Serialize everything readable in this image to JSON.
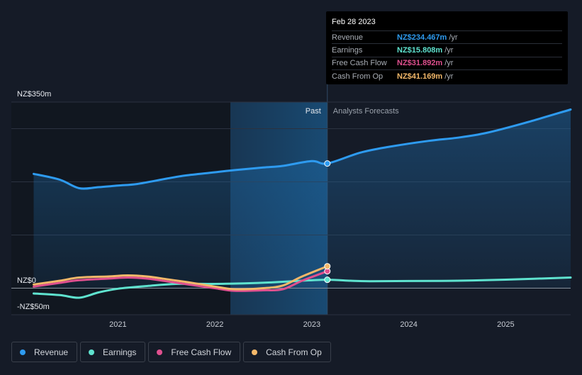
{
  "tooltip": {
    "date": "Feb 28 2023",
    "rows": [
      {
        "label": "Revenue",
        "value": "NZ$234.467m",
        "unit": "/yr",
        "color": "#2e9bf0"
      },
      {
        "label": "Earnings",
        "value": "NZ$15.808m",
        "unit": "/yr",
        "color": "#5fe3cf"
      },
      {
        "label": "Free Cash Flow",
        "value": "NZ$31.892m",
        "unit": "/yr",
        "color": "#e0508f"
      },
      {
        "label": "Cash From Op",
        "value": "NZ$41.169m",
        "unit": "/yr",
        "color": "#f3b86a"
      }
    ]
  },
  "legend": [
    {
      "label": "Revenue",
      "color": "#2e9bf0"
    },
    {
      "label": "Earnings",
      "color": "#5fe3cf"
    },
    {
      "label": "Free Cash Flow",
      "color": "#e0508f"
    },
    {
      "label": "Cash From Op",
      "color": "#f3b86a"
    }
  ],
  "chart_data": {
    "type": "line",
    "section_labels": {
      "past": "Past",
      "forecast": "Analysts Forecasts"
    },
    "y_tick_labels": [
      {
        "value": 350,
        "label": "NZ$350m"
      },
      {
        "value": 0,
        "label": "NZ$0"
      },
      {
        "value": -50,
        "label": "-NZ$50m"
      }
    ],
    "ylim": [
      -50,
      350
    ],
    "x_tick_labels": [
      {
        "value": 2021.0,
        "label": "2021"
      },
      {
        "value": 2022.0,
        "label": "2022"
      },
      {
        "value": 2023.0,
        "label": "2023"
      },
      {
        "value": 2024.0,
        "label": "2024"
      },
      {
        "value": 2025.0,
        "label": "2025"
      }
    ],
    "xlim": [
      2019.9,
      2025.67
    ],
    "past_end": 2023.16,
    "highlight_start": 2022.16,
    "grid": true,
    "series": [
      {
        "name": "Revenue",
        "color": "#2e9bf0",
        "fill": true,
        "points": [
          [
            2020.13,
            215
          ],
          [
            2020.4,
            204
          ],
          [
            2020.6,
            188
          ],
          [
            2020.8,
            190
          ],
          [
            2021.0,
            193
          ],
          [
            2021.2,
            196
          ],
          [
            2021.5,
            206
          ],
          [
            2021.7,
            212
          ],
          [
            2022.0,
            218
          ],
          [
            2022.2,
            222
          ],
          [
            2022.5,
            227
          ],
          [
            2022.7,
            230
          ],
          [
            2023.0,
            239
          ],
          [
            2023.16,
            234.5
          ],
          [
            2023.5,
            255
          ],
          [
            2023.8,
            266
          ],
          [
            2024.2,
            277
          ],
          [
            2024.5,
            283
          ],
          [
            2024.8,
            292
          ],
          [
            2025.2,
            311
          ],
          [
            2025.67,
            336
          ]
        ]
      },
      {
        "name": "Earnings",
        "color": "#5fe3cf",
        "points": [
          [
            2020.13,
            -10
          ],
          [
            2020.4,
            -13
          ],
          [
            2020.6,
            -18
          ],
          [
            2020.8,
            -8
          ],
          [
            2021.0,
            -1
          ],
          [
            2021.3,
            4
          ],
          [
            2021.6,
            8
          ],
          [
            2022.0,
            8
          ],
          [
            2022.3,
            9
          ],
          [
            2022.6,
            11
          ],
          [
            2022.9,
            14
          ],
          [
            2023.16,
            15.8
          ],
          [
            2023.4,
            14
          ],
          [
            2023.6,
            13
          ],
          [
            2024.0,
            13.5
          ],
          [
            2024.5,
            14
          ],
          [
            2025.0,
            16
          ],
          [
            2025.67,
            20
          ]
        ]
      },
      {
        "name": "Free Cash Flow",
        "color": "#e0508f",
        "points": [
          [
            2020.13,
            3
          ],
          [
            2020.4,
            10
          ],
          [
            2020.6,
            15
          ],
          [
            2020.9,
            18
          ],
          [
            2021.1,
            20
          ],
          [
            2021.3,
            18
          ],
          [
            2021.5,
            13
          ],
          [
            2021.8,
            5
          ],
          [
            2022.0,
            0
          ],
          [
            2022.2,
            -5
          ],
          [
            2022.5,
            -4
          ],
          [
            2022.7,
            -2
          ],
          [
            2022.9,
            14
          ],
          [
            2023.16,
            31.9
          ]
        ]
      },
      {
        "name": "Cash From Op",
        "color": "#f3b86a",
        "points": [
          [
            2020.13,
            7
          ],
          [
            2020.4,
            14
          ],
          [
            2020.6,
            20
          ],
          [
            2020.9,
            22
          ],
          [
            2021.1,
            24
          ],
          [
            2021.3,
            22
          ],
          [
            2021.5,
            17
          ],
          [
            2021.8,
            9
          ],
          [
            2022.0,
            3
          ],
          [
            2022.2,
            -2
          ],
          [
            2022.5,
            0
          ],
          [
            2022.7,
            5
          ],
          [
            2022.9,
            22
          ],
          [
            2023.16,
            41.2
          ]
        ]
      }
    ]
  }
}
